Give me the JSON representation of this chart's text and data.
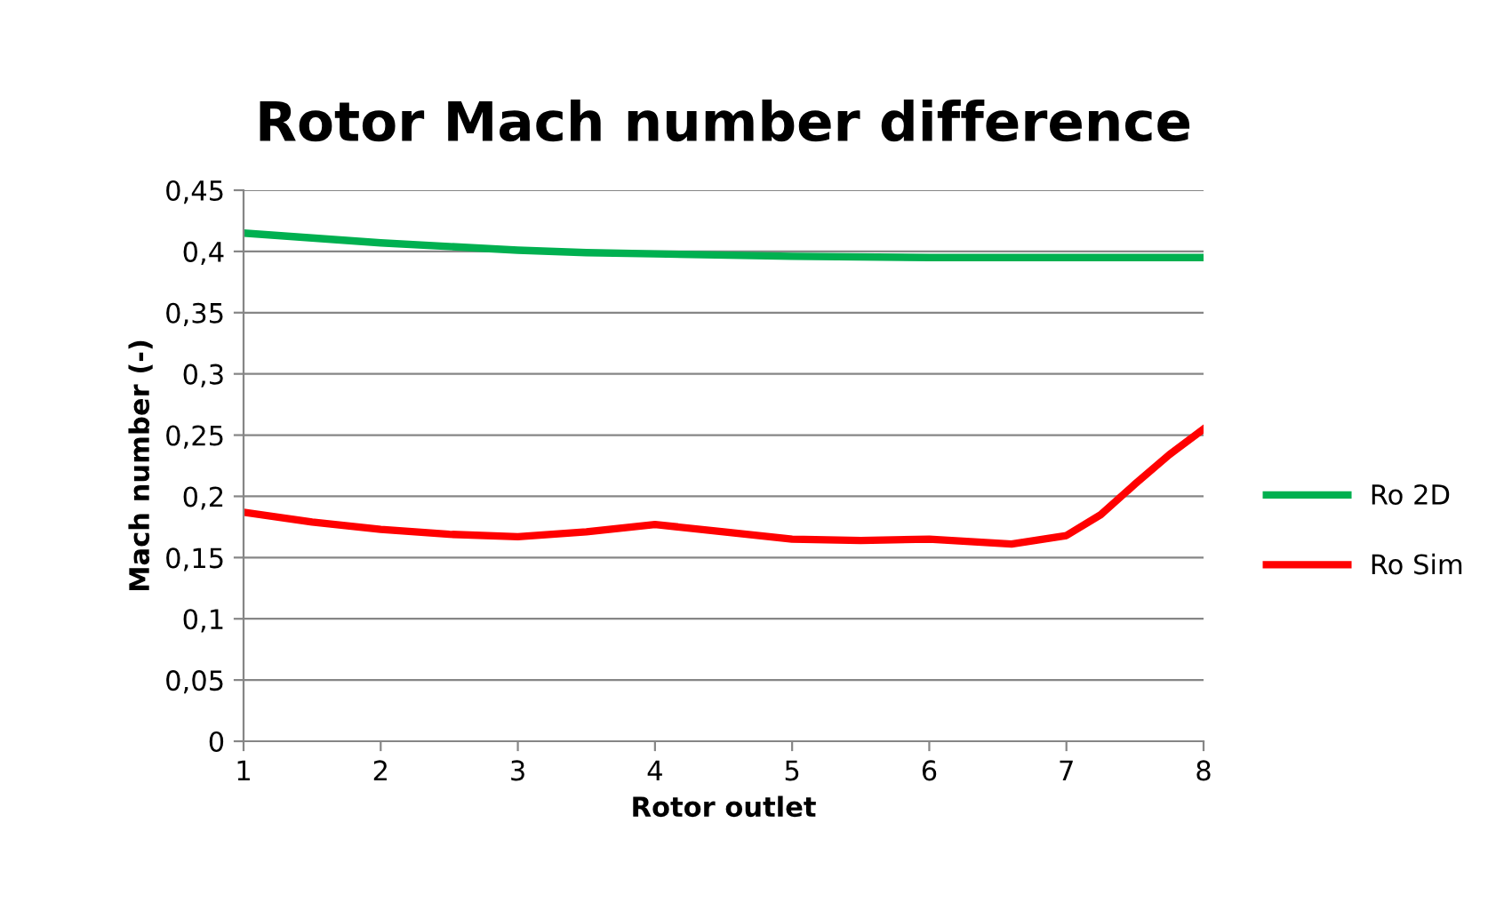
{
  "chart_data": {
    "type": "line",
    "title": "Rotor Mach number difference",
    "xlabel": "Rotor outlet",
    "ylabel": "Mach number (-)",
    "series": [
      {
        "name": "Ro 2D",
        "color": "#00b050",
        "x": [
          1,
          1.5,
          2,
          2.5,
          3,
          3.5,
          4,
          5,
          6,
          7,
          8
        ],
        "values": [
          0.415,
          0.411,
          0.407,
          0.404,
          0.401,
          0.399,
          0.398,
          0.396,
          0.395,
          0.395,
          0.395
        ]
      },
      {
        "name": "Ro Sim",
        "color": "#ff0000",
        "x": [
          1,
          1.5,
          2,
          2.5,
          3,
          3.5,
          4,
          4.5,
          5,
          5.5,
          6,
          6.3,
          6.6,
          7,
          7.25,
          7.5,
          7.75,
          8
        ],
        "values": [
          0.187,
          0.179,
          0.173,
          0.169,
          0.167,
          0.171,
          0.177,
          0.171,
          0.165,
          0.164,
          0.165,
          0.163,
          0.161,
          0.168,
          0.185,
          0.21,
          0.234,
          0.255
        ]
      }
    ],
    "xlim": [
      1,
      8
    ],
    "xticks": [
      1,
      2,
      3,
      4,
      5,
      6,
      7,
      8
    ],
    "ylim": [
      0,
      0.45
    ],
    "yticks": [
      {
        "value": 0,
        "label": "0"
      },
      {
        "value": 0.05,
        "label": "0,05"
      },
      {
        "value": 0.1,
        "label": "0,1"
      },
      {
        "value": 0.15,
        "label": "0,15"
      },
      {
        "value": 0.2,
        "label": "0,2"
      },
      {
        "value": 0.25,
        "label": "0,25"
      },
      {
        "value": 0.3,
        "label": "0,3"
      },
      {
        "value": 0.35,
        "label": "0,35"
      },
      {
        "value": 0.4,
        "label": "0,4"
      },
      {
        "value": 0.45,
        "label": "0,45"
      }
    ],
    "grid": "y",
    "legend": "right",
    "marker": "none",
    "line_style": "solid"
  }
}
